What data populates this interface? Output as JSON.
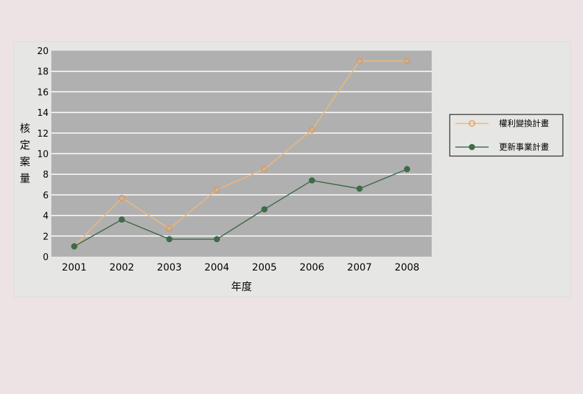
{
  "chart_data": {
    "type": "line",
    "title": "",
    "xlabel": "年度",
    "ylabel": "核定案量",
    "categories": [
      "2001",
      "2002",
      "2003",
      "2004",
      "2005",
      "2006",
      "2007",
      "2008"
    ],
    "ylim": [
      0,
      20
    ],
    "yticks": [
      0,
      2,
      4,
      6,
      8,
      10,
      12,
      14,
      16,
      18,
      20
    ],
    "grid": true,
    "legend_position": "right",
    "series": [
      {
        "name": "權利變換計畫",
        "values": [
          1,
          5.7,
          2.7,
          6.5,
          8.5,
          12.3,
          19,
          19
        ],
        "color": "#f0b878",
        "marker": "open-circle",
        "marker_color": "#e8944a"
      },
      {
        "name": "更新事業計畫",
        "values": [
          1,
          3.6,
          1.7,
          1.7,
          4.6,
          7.4,
          6.6,
          8.5
        ],
        "color": "#3f6b48",
        "marker": "filled-circle",
        "marker_color": "#3f6b48"
      }
    ],
    "colors": {
      "page_background": "#ede3e4",
      "panel_background": "#e6e6e4",
      "plot_background": "#b0b0b0",
      "gridline": "#ffffff"
    }
  }
}
